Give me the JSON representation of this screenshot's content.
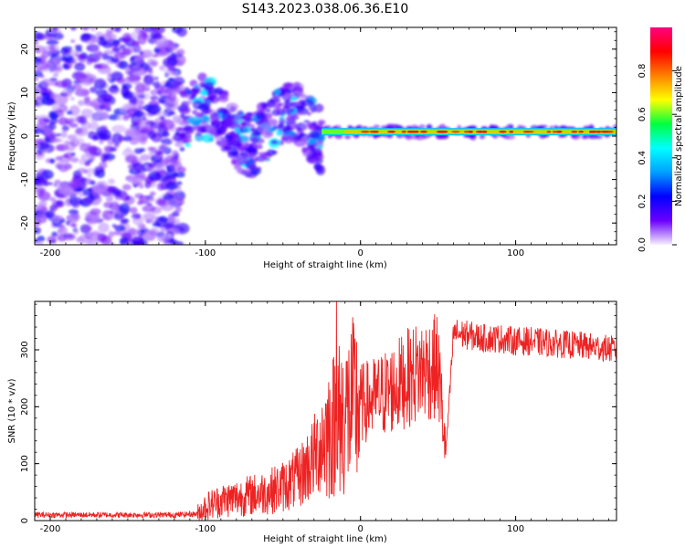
{
  "figure": {
    "title": "S143.2023.038.06.36.E10"
  },
  "chart_data": [
    {
      "type": "heatmap",
      "xlabel": "Height of straight line (km)",
      "ylabel": "Frequency (Hz)",
      "xlim": [
        -210,
        165
      ],
      "ylim": [
        -25,
        25
      ],
      "xticks": [
        -200,
        -100,
        0,
        100
      ],
      "xtick_labels": [
        "-200",
        "-100",
        "0",
        "100"
      ],
      "yticks": [
        20,
        10,
        0,
        -10,
        -20
      ],
      "ytick_labels": [
        "20",
        "10",
        "0",
        "-10",
        "-20"
      ],
      "colorbar": {
        "label": "Normalized spectral amplitude",
        "range": [
          0,
          1
        ],
        "ticks": [
          0,
          0.2,
          0.4,
          0.6,
          0.8
        ],
        "tick_labels": [
          "0.0",
          "0.2",
          "0.4",
          "0.6",
          "0.8"
        ],
        "colors": [
          "#f7f0ff",
          "#6a00ff",
          "#0000ff",
          "#00a0ff",
          "#00ffff",
          "#00ff40",
          "#ffff00",
          "#ff8000",
          "#ff0000",
          "#ff0080"
        ]
      },
      "regions": [
        {
          "name": "noise",
          "x": [
            -210,
            -115
          ],
          "freq": [
            -25,
            25
          ],
          "amplitude": 0.1
        },
        {
          "name": "transition",
          "x": [
            -115,
            -25
          ],
          "freq_center": [
            6,
            -8
          ],
          "amplitude": 0.35
        },
        {
          "name": "steady",
          "x": [
            -25,
            165
          ],
          "freq": 1,
          "amplitude": 0.8
        }
      ],
      "grid": false
    },
    {
      "type": "line",
      "xlabel": "Height of straight line (km)",
      "ylabel": "SNR (10 * v/v)",
      "xlim": [
        -210,
        165
      ],
      "ylim": [
        0,
        385
      ],
      "xticks": [
        -200,
        -100,
        0,
        100
      ],
      "xtick_labels": [
        "-200",
        "-100",
        "0",
        "100"
      ],
      "yticks": [
        0,
        100,
        200,
        300
      ],
      "ytick_labels": [
        "0",
        "100",
        "200",
        "300"
      ],
      "series": [
        {
          "color": "#ee2222",
          "x": [
            -210,
            -180,
            -150,
            -120,
            -105,
            -100,
            -90,
            -80,
            -70,
            -60,
            -50,
            -40,
            -30,
            -25,
            -20,
            -15,
            -10,
            -5,
            0,
            10,
            20,
            30,
            40,
            50,
            55,
            57,
            60,
            70,
            80,
            90,
            100,
            110,
            120,
            130,
            140,
            150,
            160,
            165
          ],
          "y": [
            10,
            10,
            10,
            10,
            12,
            25,
            35,
            40,
            45,
            50,
            60,
            75,
            110,
            140,
            160,
            175,
            185,
            200,
            205,
            215,
            230,
            250,
            265,
            270,
            120,
            200,
            330,
            325,
            320,
            320,
            315,
            315,
            312,
            310,
            308,
            305,
            302,
            300
          ]
        }
      ],
      "grid": false
    }
  ]
}
